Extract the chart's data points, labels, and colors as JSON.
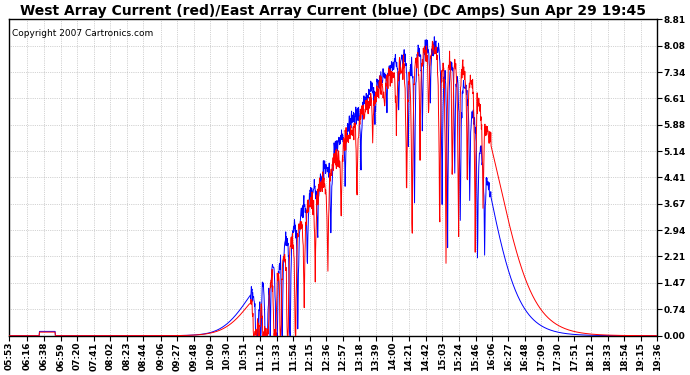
{
  "title": "West Array Current (red)/East Array Current (blue) (DC Amps) Sun Apr 29 19:45",
  "copyright": "Copyright 2007 Cartronics.com",
  "background_color": "#ffffff",
  "plot_bg_color": "#ffffff",
  "grid_color": "#aaaaaa",
  "line_color_red": "#ff0000",
  "line_color_blue": "#0000ff",
  "yticks": [
    0.0,
    0.74,
    1.47,
    2.21,
    2.94,
    3.67,
    4.41,
    5.14,
    5.88,
    6.61,
    7.34,
    8.08,
    8.81
  ],
  "ymax": 8.81,
  "ymin": 0.0,
  "xtick_labels": [
    "05:53",
    "06:16",
    "06:38",
    "06:59",
    "07:20",
    "07:41",
    "08:02",
    "08:23",
    "08:44",
    "09:06",
    "09:27",
    "09:48",
    "10:09",
    "10:30",
    "10:51",
    "11:12",
    "11:33",
    "11:54",
    "12:15",
    "12:36",
    "12:57",
    "13:18",
    "13:39",
    "14:00",
    "14:21",
    "14:42",
    "15:03",
    "15:24",
    "15:46",
    "16:06",
    "16:27",
    "16:48",
    "17:09",
    "17:30",
    "17:51",
    "18:12",
    "18:33",
    "18:54",
    "19:15",
    "19:36"
  ],
  "title_fontsize": 10,
  "copyright_fontsize": 6.5,
  "tick_fontsize": 6.5
}
